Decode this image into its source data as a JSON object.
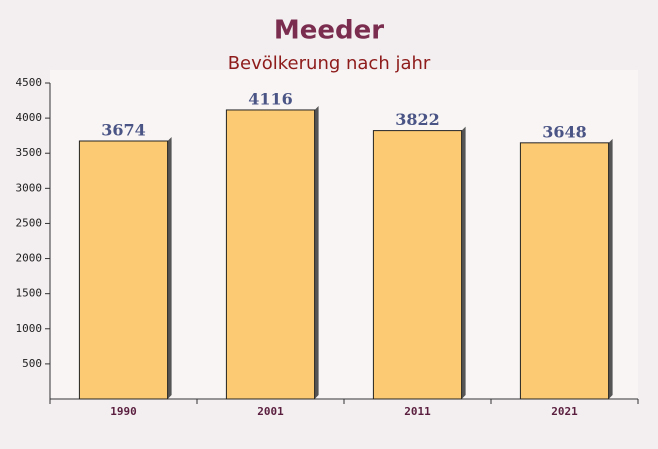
{
  "chart_data": {
    "type": "bar",
    "title": "Meeder",
    "subtitle": "Bevölkerung nach jahr",
    "categories": [
      "1990",
      "2001",
      "2011",
      "2021"
    ],
    "values": [
      3674,
      4116,
      3822,
      3648
    ],
    "color": "#fcc564",
    "ylim": [
      0,
      4500
    ],
    "yticks": [
      500,
      1000,
      1500,
      2000,
      2500,
      3000,
      3500,
      4000,
      4500
    ],
    "grid": false
  }
}
